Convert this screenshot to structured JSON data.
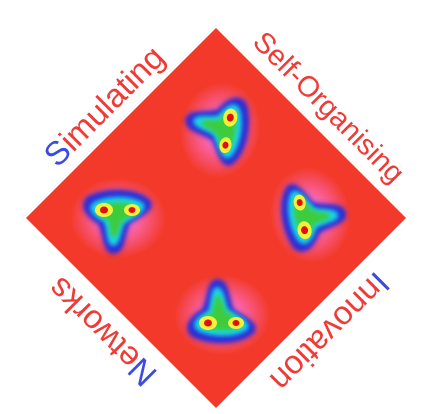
{
  "logo": {
    "words": [
      {
        "initial": "S",
        "rest": "imulating"
      },
      {
        "initial": "S",
        "rest": "elf-Organising"
      },
      {
        "initial": "I",
        "rest": "nnovation"
      },
      {
        "initial": "N",
        "rest": "etworks"
      }
    ]
  }
}
